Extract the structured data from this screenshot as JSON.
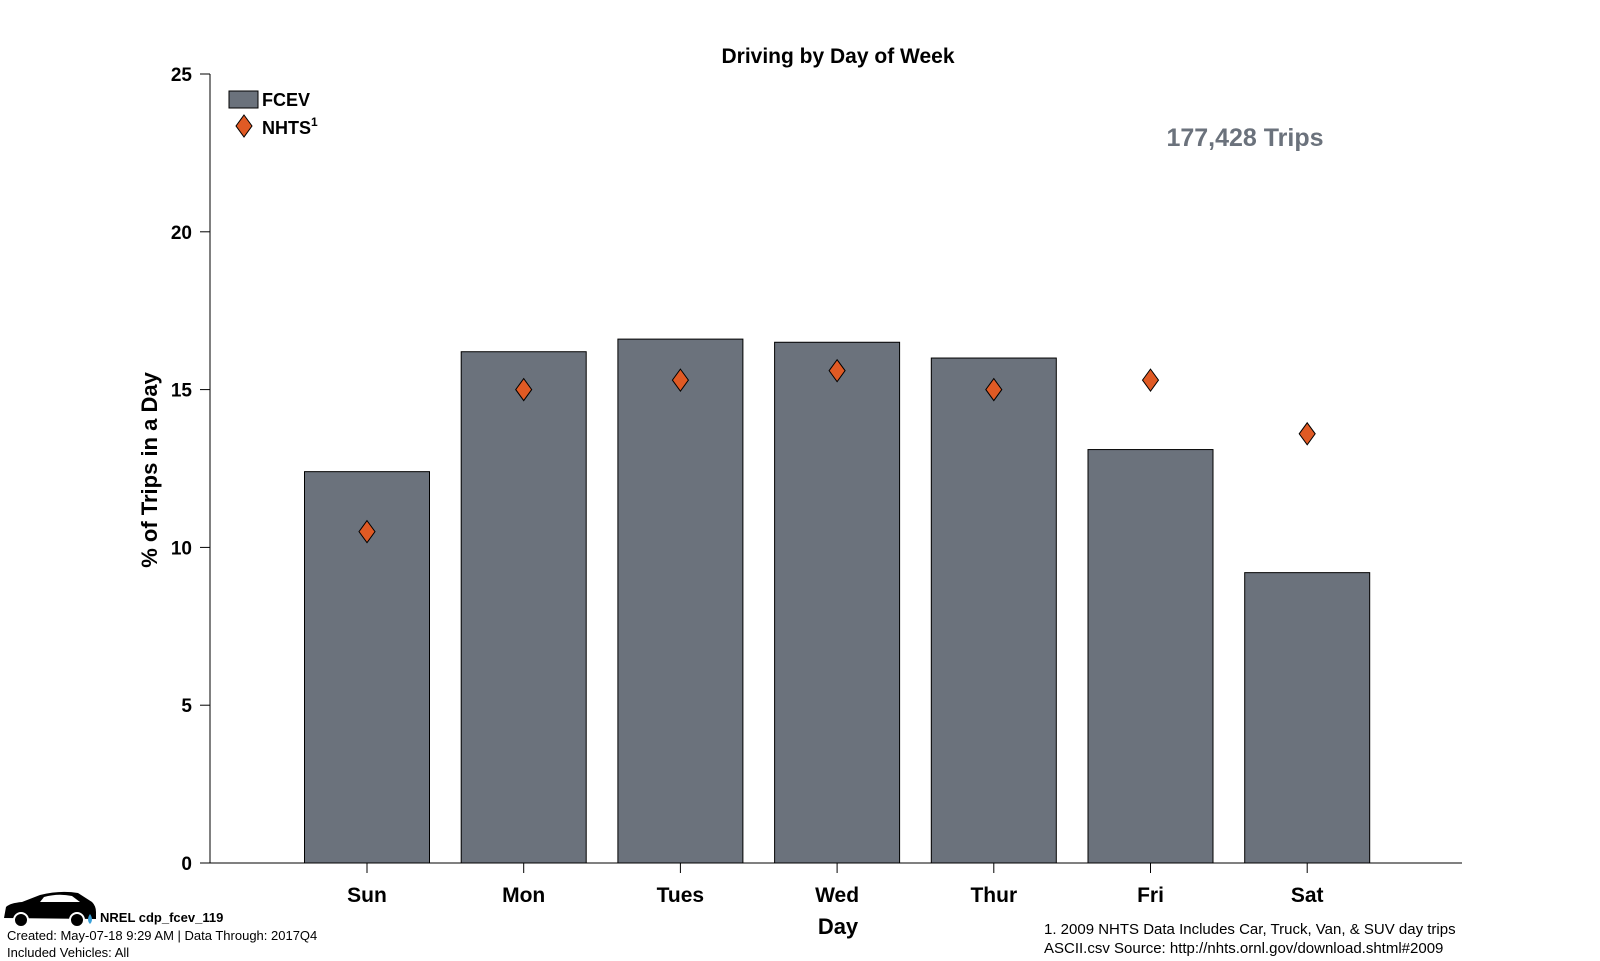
{
  "chart_data": {
    "type": "bar",
    "title": "Driving by Day of Week",
    "xlabel": "Day",
    "ylabel": "% of Trips in a Day",
    "categories": [
      "Sun",
      "Mon",
      "Tues",
      "Wed",
      "Thur",
      "Fri",
      "Sat"
    ],
    "series": [
      {
        "name": "FCEV",
        "kind": "bar",
        "values": [
          12.4,
          16.2,
          16.6,
          16.5,
          16.0,
          13.1,
          9.2
        ]
      },
      {
        "name": "NHTS",
        "name_superscript": "1",
        "kind": "marker",
        "marker": "diamond",
        "values": [
          10.5,
          15.0,
          15.3,
          15.6,
          15.0,
          15.3,
          13.6
        ]
      }
    ],
    "ylim": [
      0,
      25
    ],
    "yticks": [
      "0",
      "5",
      "10",
      "15",
      "20",
      "25"
    ],
    "grid": false,
    "legend_position": "top-left",
    "annotation": "177,428 Trips",
    "colors": {
      "bar": "#6b727c",
      "marker": "#e05a24",
      "annotation": "#6b727c"
    }
  },
  "footer": {
    "vehicle_id": "NREL cdp_fcev_119",
    "created": "Created: May-07-18  9:29 AM | Data Through: 2017Q4",
    "included": "Included Vehicles: All",
    "note_line1": "1. 2009 NHTS Data Includes Car, Truck, Van, & SUV day trips",
    "note_line2": "ASCII.csv Source: http://nhts.ornl.gov/download.shtml#2009"
  },
  "logo_icon": "car-icon"
}
